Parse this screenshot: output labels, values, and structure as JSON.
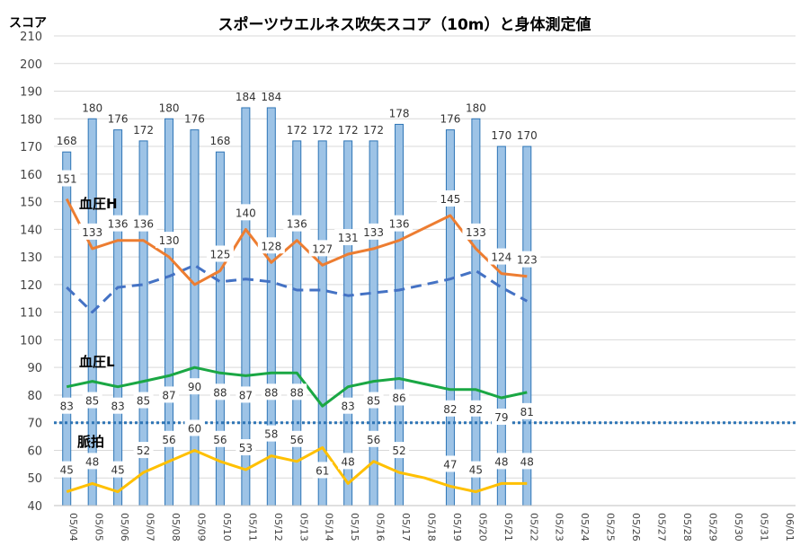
{
  "chart_data": {
    "type": "bar",
    "title": "スポーツウエルネス吹矢スコア（10m）と身体測定値",
    "ylabel": "スコア",
    "xlabel": "",
    "ylim": [
      40,
      210
    ],
    "yticks": [
      40,
      50,
      60,
      70,
      80,
      90,
      100,
      110,
      120,
      130,
      140,
      150,
      160,
      170,
      180,
      190,
      200,
      210
    ],
    "grid": true,
    "categories": [
      "05/04",
      "05/05",
      "05/06",
      "05/07",
      "05/08",
      "05/09",
      "05/10",
      "05/11",
      "05/12",
      "05/13",
      "05/14",
      "05/15",
      "05/16",
      "05/17",
      "05/18",
      "05/19",
      "05/20",
      "05/21",
      "05/22",
      "05/23",
      "05/24",
      "05/25",
      "05/26",
      "05/27",
      "05/28",
      "05/29",
      "05/30",
      "05/31",
      "06/01"
    ],
    "score": [
      168,
      180,
      176,
      172,
      180,
      176,
      168,
      184,
      184,
      172,
      172,
      172,
      172,
      178,
      null,
      176,
      180,
      170,
      170,
      null,
      null,
      null,
      null,
      null,
      null,
      null,
      null,
      null,
      null
    ],
    "bp_high": {
      "name": "血圧H",
      "values": [
        151,
        133,
        136,
        136,
        130,
        120,
        125,
        140,
        128,
        136,
        127,
        131,
        133,
        136,
        null,
        145,
        133,
        124,
        123,
        null,
        null,
        null,
        null,
        null,
        null,
        null,
        null,
        null,
        null
      ],
      "labels": [
        "151",
        "133",
        "136",
        "136",
        "130",
        "",
        "125",
        "140",
        "128",
        "136",
        "127",
        "131",
        "133",
        "136",
        "",
        "145",
        "133",
        "124",
        "123",
        "",
        "",
        "",
        "",
        "",
        "",
        "",
        "",
        "",
        ""
      ]
    },
    "bp_trend": {
      "values": [
        119,
        110,
        119,
        120,
        123,
        127,
        121,
        122,
        121,
        118,
        118,
        116,
        117,
        118,
        120,
        122,
        125,
        119,
        114,
        null,
        null,
        null,
        null,
        null,
        null,
        null,
        null,
        null,
        null
      ]
    },
    "bp_low": {
      "name": "血圧L",
      "values": [
        83,
        85,
        83,
        85,
        87,
        90,
        88,
        87,
        88,
        88,
        76,
        83,
        85,
        86,
        84,
        82,
        82,
        79,
        81,
        null,
        null,
        null,
        null,
        null,
        null,
        null,
        null,
        null,
        null
      ],
      "labels": [
        "83",
        "85",
        "83",
        "85",
        "87",
        "90",
        "88",
        "87",
        "88",
        "88",
        "",
        "83",
        "85",
        "86",
        "",
        "82",
        "82",
        "79",
        "81",
        "",
        "",
        "",
        "",
        "",
        "",
        "",
        "",
        "",
        ""
      ]
    },
    "pulse": {
      "name": "脈拍",
      "values": [
        45,
        48,
        45,
        52,
        56,
        60,
        56,
        53,
        58,
        56,
        61,
        48,
        56,
        52,
        50,
        47,
        45,
        48,
        48,
        null,
        null,
        null,
        null,
        null,
        null,
        null,
        null,
        null,
        null
      ],
      "labels": [
        "45",
        "48",
        "45",
        "52",
        "56",
        "60",
        "56",
        "53",
        "58",
        "56",
        "61",
        "48",
        "56",
        "52",
        "",
        "47",
        "45",
        "48",
        "48",
        "",
        "",
        "",
        "",
        "",
        "",
        "",
        "",
        "",
        ""
      ]
    },
    "reference_line": 70,
    "colors": {
      "bar_fill": "#9dc3e6",
      "bar_edge": "#2e75b6",
      "bp_high": "#ed7d31",
      "bp_trend": "#4472c4",
      "bp_low": "#1aa744",
      "pulse": "#ffc000",
      "reference": "#2e75b6",
      "grid": "#d9d9d9",
      "text": "#333333"
    }
  }
}
